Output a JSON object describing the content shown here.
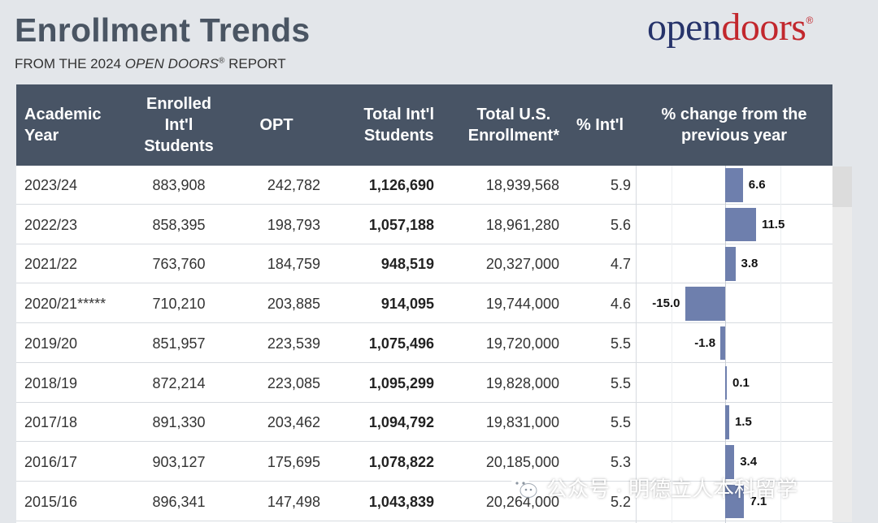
{
  "header": {
    "title": "Enrollment Trends",
    "subtitle_prefix": "FROM THE 2024 ",
    "subtitle_italic": "OPEN DOORS",
    "subtitle_reg": "®",
    "subtitle_suffix": " REPORT"
  },
  "logo": {
    "part1": "open",
    "part2": "doors",
    "reg": "®"
  },
  "watermark": {
    "text": "公众号 · 明德立人本科留学"
  },
  "chart_data": {
    "type": "table",
    "columns": [
      "Academic\nYear",
      "Enrolled\nInt'l\nStudents",
      "OPT",
      "Total Int'l\nStudents",
      "Total U.S.\nEnrollment*",
      "% Int'l",
      "% change from the\nprevious year"
    ],
    "rows": [
      {
        "year": "2023/24",
        "enrolled": "883,908",
        "opt": "242,782",
        "total_intl": "1,126,690",
        "total_us": "18,939,568",
        "pct_intl": "5.9",
        "pct_change": 6.6,
        "pct_change_label": "6.6"
      },
      {
        "year": "2022/23",
        "enrolled": "858,395",
        "opt": "198,793",
        "total_intl": "1,057,188",
        "total_us": "18,961,280",
        "pct_intl": "5.6",
        "pct_change": 11.5,
        "pct_change_label": "11.5"
      },
      {
        "year": "2021/22",
        "enrolled": "763,760",
        "opt": "184,759",
        "total_intl": "948,519",
        "total_us": "20,327,000",
        "pct_intl": "4.7",
        "pct_change": 3.8,
        "pct_change_label": "3.8"
      },
      {
        "year": "2020/21*****",
        "enrolled": "710,210",
        "opt": "203,885",
        "total_intl": "914,095",
        "total_us": "19,744,000",
        "pct_intl": "4.6",
        "pct_change": -15.0,
        "pct_change_label": "-15.0"
      },
      {
        "year": "2019/20",
        "enrolled": "851,957",
        "opt": "223,539",
        "total_intl": "1,075,496",
        "total_us": "19,720,000",
        "pct_intl": "5.5",
        "pct_change": -1.8,
        "pct_change_label": "-1.8"
      },
      {
        "year": "2018/19",
        "enrolled": "872,214",
        "opt": "223,085",
        "total_intl": "1,095,299",
        "total_us": "19,828,000",
        "pct_intl": "5.5",
        "pct_change": 0.1,
        "pct_change_label": "0.1"
      },
      {
        "year": "2017/18",
        "enrolled": "891,330",
        "opt": "203,462",
        "total_intl": "1,094,792",
        "total_us": "19,831,000",
        "pct_intl": "5.5",
        "pct_change": 1.5,
        "pct_change_label": "1.5"
      },
      {
        "year": "2016/17",
        "enrolled": "903,127",
        "opt": "175,695",
        "total_intl": "1,078,822",
        "total_us": "20,185,000",
        "pct_intl": "5.3",
        "pct_change": 3.4,
        "pct_change_label": "3.4"
      },
      {
        "year": "2015/16",
        "enrolled": "896,341",
        "opt": "147,498",
        "total_intl": "1,043,839",
        "total_us": "20,264,000",
        "pct_intl": "5.2",
        "pct_change": 7.1,
        "pct_change_label": "7.1"
      }
    ],
    "colors": {
      "header_bg": "#485465",
      "bar": "#6e7fad",
      "title": "#4a5563",
      "logo_open": "#26336a",
      "logo_doors": "#c2272d"
    }
  }
}
